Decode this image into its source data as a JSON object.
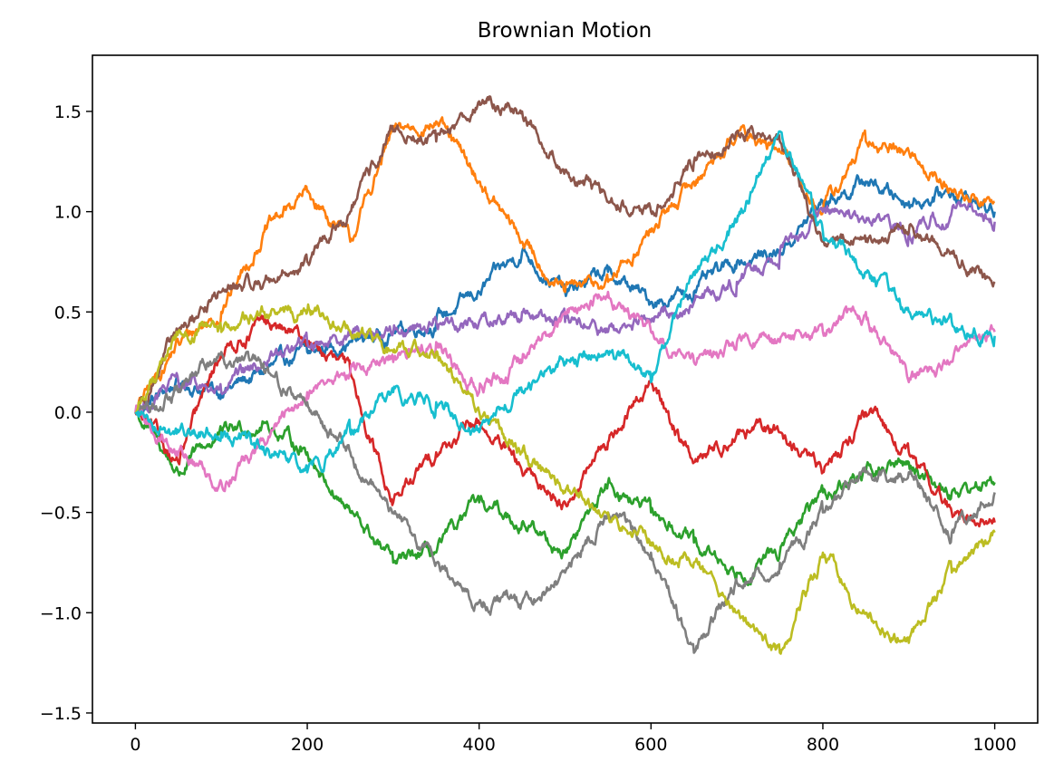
{
  "chart_data": {
    "type": "line",
    "title": "Brownian Motion",
    "xlabel": "",
    "ylabel": "",
    "xlim": [
      -50,
      1050
    ],
    "ylim": [
      -1.55,
      1.78
    ],
    "grid": false,
    "legend": "none",
    "x_ticks": [
      0,
      200,
      400,
      600,
      800,
      1000
    ],
    "x_tick_labels": [
      "0",
      "200",
      "400",
      "600",
      "800",
      "1000"
    ],
    "y_ticks": [
      -1.5,
      -1.0,
      -0.5,
      0.0,
      0.5,
      1.0,
      1.5
    ],
    "y_tick_labels": [
      "−1.5",
      "−1.0",
      "−0.5",
      "0.0",
      "0.5",
      "1.0",
      "1.5"
    ],
    "x": [
      0,
      50,
      100,
      150,
      200,
      250,
      300,
      350,
      400,
      450,
      500,
      550,
      600,
      650,
      700,
      750,
      800,
      850,
      900,
      950,
      1000
    ],
    "series": [
      {
        "color": "#1f77b4",
        "values": [
          0.0,
          0.15,
          0.1,
          0.2,
          0.3,
          0.35,
          0.4,
          0.45,
          0.6,
          0.8,
          0.6,
          0.7,
          0.55,
          0.6,
          0.75,
          0.8,
          1.05,
          1.15,
          1.05,
          1.1,
          1.0
        ]
      },
      {
        "color": "#ff7f0e",
        "values": [
          0.0,
          0.35,
          0.5,
          0.9,
          1.1,
          0.85,
          1.4,
          1.45,
          1.15,
          0.85,
          0.6,
          0.65,
          0.9,
          1.15,
          1.4,
          1.3,
          1.0,
          1.35,
          1.3,
          1.1,
          1.05
        ]
      },
      {
        "color": "#2ca02c",
        "values": [
          0.0,
          -0.3,
          -0.1,
          -0.05,
          -0.2,
          -0.5,
          -0.75,
          -0.7,
          -0.45,
          -0.55,
          -0.7,
          -0.35,
          -0.5,
          -0.65,
          -0.8,
          -0.7,
          -0.4,
          -0.3,
          -0.25,
          -0.4,
          -0.35
        ]
      },
      {
        "color": "#d62728",
        "values": [
          0.0,
          -0.25,
          0.3,
          0.45,
          0.35,
          0.2,
          -0.45,
          -0.2,
          -0.05,
          -0.3,
          -0.45,
          -0.15,
          0.15,
          -0.25,
          -0.1,
          -0.1,
          -0.3,
          0.0,
          -0.2,
          -0.5,
          -0.55
        ]
      },
      {
        "color": "#9467bd",
        "values": [
          0.0,
          0.15,
          0.1,
          0.25,
          0.35,
          0.4,
          0.4,
          0.45,
          0.45,
          0.5,
          0.45,
          0.4,
          0.45,
          0.55,
          0.65,
          0.8,
          1.0,
          0.95,
          0.9,
          1.0,
          0.95
        ]
      },
      {
        "color": "#8c564b",
        "values": [
          0.0,
          0.4,
          0.6,
          0.65,
          0.75,
          1.0,
          1.4,
          1.35,
          1.55,
          1.5,
          1.2,
          1.05,
          1.0,
          1.25,
          1.4,
          1.35,
          0.85,
          0.85,
          0.9,
          0.8,
          0.65
        ]
      },
      {
        "color": "#e377c2",
        "values": [
          0.0,
          -0.2,
          -0.35,
          -0.15,
          0.1,
          0.2,
          0.25,
          0.35,
          0.1,
          0.25,
          0.5,
          0.6,
          0.4,
          0.25,
          0.35,
          0.35,
          0.4,
          0.5,
          0.15,
          0.25,
          0.4
        ]
      },
      {
        "color": "#7f7f7f",
        "values": [
          0.0,
          0.1,
          0.3,
          0.2,
          0.05,
          -0.2,
          -0.5,
          -0.75,
          -0.95,
          -0.95,
          -0.8,
          -0.5,
          -0.7,
          -1.2,
          -0.85,
          -0.75,
          -0.5,
          -0.3,
          -0.3,
          -0.6,
          -0.4
        ]
      },
      {
        "color": "#bcbd22",
        "values": [
          0.0,
          0.4,
          0.4,
          0.5,
          0.5,
          0.4,
          0.3,
          0.3,
          0.0,
          -0.2,
          -0.4,
          -0.5,
          -0.65,
          -0.75,
          -1.0,
          -1.2,
          -0.7,
          -1.0,
          -1.15,
          -0.8,
          -0.6
        ]
      },
      {
        "color": "#17becf",
        "values": [
          0.0,
          -0.1,
          -0.1,
          -0.2,
          -0.3,
          -0.1,
          0.1,
          0.05,
          -0.1,
          0.1,
          0.25,
          0.3,
          0.15,
          0.7,
          0.95,
          1.4,
          0.9,
          0.7,
          0.5,
          0.45,
          0.38
        ]
      }
    ]
  }
}
